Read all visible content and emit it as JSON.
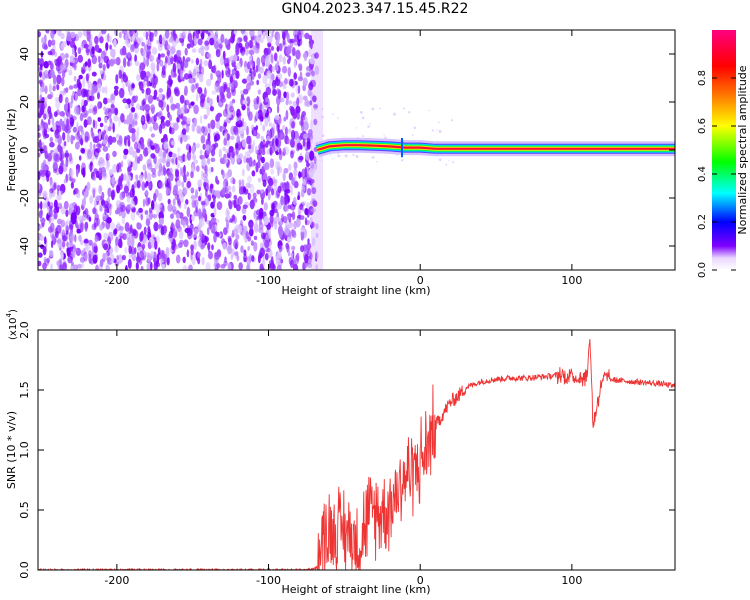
{
  "title": "GN04.2023.347.15.45.R22",
  "chart_data": [
    {
      "type": "heatmap",
      "title": "GN04.2023.347.15.45.R22",
      "xlabel": "Height of straight line (km)",
      "ylabel": "Frequency (Hz)",
      "xlim": [
        -252,
        168
      ],
      "ylim": [
        -50,
        50
      ],
      "xticks": [
        -200,
        -100,
        0,
        100
      ],
      "xtick_labels": [
        "-200",
        "-100",
        "0",
        "100"
      ],
      "yticks": [
        -40,
        -20,
        0,
        20,
        40
      ],
      "ytick_labels": [
        "-40",
        "-20",
        "0",
        "20",
        "40"
      ],
      "noise_region_end_km": -68,
      "signal_frequency_hz": 0.5,
      "signal_trace": {
        "x": [
          -68,
          -60,
          -50,
          -40,
          -30,
          -20,
          -10,
          0,
          10,
          30,
          60,
          90,
          110,
          140,
          168
        ],
        "y": [
          0,
          1.5,
          2.0,
          2.0,
          1.8,
          1.5,
          1.0,
          1.0,
          0.5,
          0.5,
          0.5,
          0.5,
          0.5,
          0.5,
          0.5
        ]
      },
      "colorbar": {
        "label": "Normalized spectral amplitude",
        "range": [
          0.0,
          1.0
        ],
        "ticks": [
          0.0,
          0.2,
          0.4,
          0.6,
          0.8
        ],
        "tick_labels": [
          "0.0",
          "0.2",
          "0.4",
          "0.6",
          "0.8"
        ],
        "colors": [
          "#ffffff",
          "#7f00ff",
          "#0000ff",
          "#00ffff",
          "#00ff00",
          "#ffff00",
          "#ff7f00",
          "#ff0000",
          "#ff0080"
        ]
      }
    },
    {
      "type": "line",
      "xlabel": "Height of straight line (km)",
      "ylabel": "SNR (10 * v/v)",
      "y_multiplier_label": "(x10",
      "y_multiplier_exp": "4",
      "xlim": [
        -252,
        168
      ],
      "ylim": [
        0.0,
        2.0
      ],
      "xticks": [
        -200,
        -100,
        0,
        100
      ],
      "xtick_labels": [
        "-200",
        "-100",
        "0",
        "100"
      ],
      "yticks": [
        0.0,
        0.5,
        1.0,
        1.5,
        2.0
      ],
      "ytick_labels": [
        "0.0",
        "0.5",
        "1.0",
        "1.5",
        "2.0"
      ],
      "color": "#ee3333",
      "series": [
        {
          "x": [
            -252,
            -200,
            -150,
            -100,
            -75,
            -68,
            -65,
            -60,
            -55,
            -50,
            -45,
            -40,
            -35,
            -30,
            -25,
            -20,
            -15,
            -10,
            -5,
            0,
            5,
            10,
            15,
            20,
            25,
            30,
            40,
            50,
            60,
            70,
            80,
            90,
            95,
            100,
            105,
            110,
            112,
            114,
            120,
            130,
            140,
            150,
            160,
            168
          ],
          "y": [
            0.0,
            0.0,
            0.0,
            0.0,
            0.0,
            0.02,
            0.2,
            0.3,
            0.3,
            0.3,
            0.25,
            0.2,
            0.4,
            0.45,
            0.45,
            0.5,
            0.65,
            0.75,
            0.8,
            0.85,
            1.0,
            1.2,
            1.3,
            1.4,
            1.45,
            1.52,
            1.57,
            1.59,
            1.6,
            1.6,
            1.61,
            1.62,
            1.62,
            1.62,
            1.6,
            1.62,
            1.95,
            1.2,
            1.6,
            1.58,
            1.57,
            1.56,
            1.55,
            1.53
          ]
        }
      ]
    }
  ]
}
